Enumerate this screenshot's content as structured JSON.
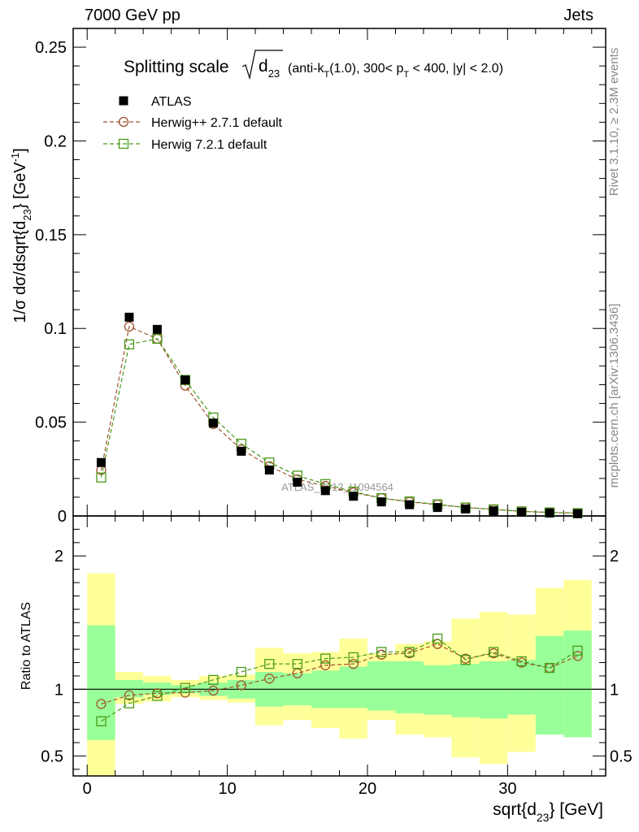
{
  "header": {
    "left": "7000 GeV pp",
    "right": "Jets"
  },
  "side_text": {
    "rivet": "Rivet 3.1.10, ≥ 2.3M events",
    "mcplots": "mcplots.cern.ch [arXiv:1306.3436]"
  },
  "chart_data": {
    "type": "scatter",
    "title": {
      "main": "Splitting scale",
      "var": "d",
      "var_sub": "23",
      "selection_pre": "(anti-k",
      "selection_sub": "T",
      "selection_mid": "(1.0), 300< p",
      "selection_sub2": "T",
      "selection_post": " < 400, |y| < 2.0)"
    },
    "watermark": "ATLAS_2012_I1094564",
    "xlabel": {
      "main": "sqrt{d",
      "sub": "23",
      "post": "} [GeV]"
    },
    "ylabel_top": {
      "pre": "1/σ dσ/dsqrt{d",
      "sub": "23",
      "mid": "} [GeV",
      "sup": "-1",
      "post": "]"
    },
    "ylabel_bottom": "Ratio to ATLAS",
    "xlim": [
      -1,
      37
    ],
    "ylim_top": [
      0,
      0.26
    ],
    "ylim_bottom": [
      0.35,
      2.3
    ],
    "x_ticks": [
      0,
      10,
      20,
      30
    ],
    "y_ticks_top": [
      {
        "v": 0,
        "label": "0"
      },
      {
        "v": 0.05,
        "label": "0.05"
      },
      {
        "v": 0.1,
        "label": "0.1"
      },
      {
        "v": 0.15,
        "label": "0.15"
      },
      {
        "v": 0.2,
        "label": "0.2"
      },
      {
        "v": 0.25,
        "label": "0.25"
      }
    ],
    "y_ticks_bottom": [
      {
        "v": 0.5,
        "label": "0.5"
      },
      {
        "v": 1,
        "label": "1"
      },
      {
        "v": 2,
        "label": "2"
      }
    ],
    "bins": [
      [
        0,
        2
      ],
      [
        2,
        4
      ],
      [
        4,
        6
      ],
      [
        6,
        8
      ],
      [
        8,
        10
      ],
      [
        10,
        12
      ],
      [
        12,
        14
      ],
      [
        14,
        16
      ],
      [
        16,
        18
      ],
      [
        18,
        20
      ],
      [
        20,
        22
      ],
      [
        22,
        24
      ],
      [
        24,
        26
      ],
      [
        26,
        28
      ],
      [
        28,
        30
      ],
      [
        30,
        32
      ],
      [
        32,
        34
      ],
      [
        34,
        36
      ]
    ],
    "x": [
      1,
      3,
      5,
      7,
      9,
      11,
      13,
      15,
      17,
      19,
      21,
      23,
      25,
      27,
      29,
      31,
      33,
      35
    ],
    "band_stat": [
      [
        0.62,
        1.48
      ],
      [
        0.94,
        1.07
      ],
      [
        0.96,
        1.05
      ],
      [
        0.97,
        1.03
      ],
      [
        0.95,
        1.05
      ],
      [
        0.93,
        1.07
      ],
      [
        0.87,
        1.13
      ],
      [
        0.88,
        1.12
      ],
      [
        0.86,
        1.14
      ],
      [
        0.86,
        1.17
      ],
      [
        0.84,
        1.21
      ],
      [
        0.82,
        1.21
      ],
      [
        0.81,
        1.18
      ],
      [
        0.79,
        1.19
      ],
      [
        0.78,
        1.21
      ],
      [
        0.81,
        1.22
      ],
      [
        0.66,
        1.4
      ],
      [
        0.64,
        1.44
      ]
    ],
    "band_syst": [
      [
        0.35,
        1.87
      ],
      [
        0.89,
        1.13
      ],
      [
        0.91,
        1.1
      ],
      [
        0.94,
        1.07
      ],
      [
        0.92,
        1.1
      ],
      [
        0.9,
        1.11
      ],
      [
        0.73,
        1.31
      ],
      [
        0.77,
        1.27
      ],
      [
        0.71,
        1.28
      ],
      [
        0.63,
        1.38
      ],
      [
        0.77,
        1.27
      ],
      [
        0.66,
        1.34
      ],
      [
        0.64,
        1.36
      ],
      [
        0.49,
        1.53
      ],
      [
        0.44,
        1.58
      ],
      [
        0.53,
        1.56
      ],
      [
        0.71,
        1.76
      ],
      [
        0.68,
        1.82
      ]
    ],
    "series": [
      {
        "name": "ATLAS",
        "color": "#000000",
        "marker": "filled-square",
        "values": [
          0.0285,
          0.106,
          0.0995,
          0.0725,
          0.0495,
          0.0345,
          0.0245,
          0.018,
          0.0135,
          0.0105,
          0.0075,
          0.006,
          0.0045,
          0.0037,
          0.0027,
          0.002,
          0.0016,
          0.0012
        ],
        "ratio": [
          1,
          1,
          1,
          1,
          1,
          1,
          1,
          1,
          1,
          1,
          1,
          1,
          1,
          1,
          1,
          1,
          1,
          1
        ]
      },
      {
        "name": "Herwig++ 2.7.1 default",
        "color": "#a0522d",
        "marker": "open-circle",
        "values": [
          0.0245,
          0.101,
          0.0945,
          0.0695,
          0.049,
          0.0355,
          0.0265,
          0.0195,
          0.016,
          0.0125,
          0.0095,
          0.0075,
          0.006,
          0.0045,
          0.0035,
          0.0025,
          0.0018,
          0.0015
        ],
        "ratio": [
          0.89,
          0.955,
          0.97,
          0.975,
          0.99,
          1.03,
          1.08,
          1.12,
          1.18,
          1.19,
          1.26,
          1.27,
          1.34,
          1.23,
          1.27,
          1.2,
          1.16,
          1.25
        ]
      },
      {
        "name": "Herwig 7.2.1 default",
        "color": "#4a9a1a",
        "marker": "open-square",
        "values": [
          0.0205,
          0.0915,
          0.0945,
          0.0725,
          0.0525,
          0.0385,
          0.0285,
          0.0215,
          0.017,
          0.013,
          0.0095,
          0.0077,
          0.0062,
          0.0045,
          0.0035,
          0.0024,
          0.0019,
          0.0015
        ],
        "ratio": [
          0.76,
          0.895,
          0.95,
          1.01,
          1.07,
          1.13,
          1.19,
          1.19,
          1.23,
          1.24,
          1.28,
          1.28,
          1.38,
          1.22,
          1.28,
          1.21,
          1.16,
          1.29
        ]
      }
    ],
    "colors": {
      "stat_band": "#99ff99",
      "syst_band": "#ffff99"
    }
  }
}
